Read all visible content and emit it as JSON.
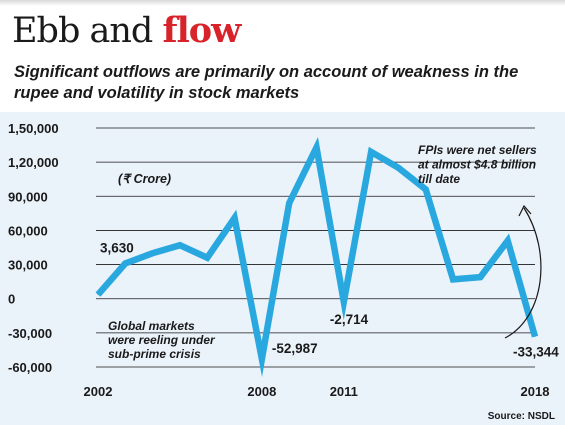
{
  "title": {
    "plain": "Ebb and ",
    "accent": "flow"
  },
  "subtitle": "Significant outflows are primarily on account of  weakness in the rupee and volatility in stock markets",
  "source": "Source: NSDL",
  "colors": {
    "line": "#29a8e0",
    "accent": "#d8232a",
    "panel": "#eaf2fa",
    "grid": "#1a1a1a",
    "text": "#1a1a1a"
  },
  "chart_data": {
    "type": "line",
    "unit_label": "(₹ Crore)",
    "x": [
      2002,
      2003,
      2004,
      2005,
      2006,
      2007,
      2008,
      2009,
      2010,
      2011,
      2012,
      2013,
      2014,
      2015,
      2016,
      2017,
      2018
    ],
    "series": [
      {
        "values": [
          3630,
          31000,
          40000,
          47000,
          36000,
          71000,
          -52987,
          84000,
          133000,
          -2714,
          129000,
          115000,
          96000,
          17000,
          19000,
          51000,
          -33344
        ]
      }
    ],
    "ylim": [
      -60000,
      150000
    ],
    "yticks": [
      -60000,
      -30000,
      0,
      30000,
      60000,
      90000,
      120000,
      150000
    ],
    "ytick_labels": [
      "-60,000",
      "-30,000",
      "0",
      "30,000",
      "60,000",
      "90,000",
      "1,20,000",
      "1,50,000"
    ],
    "xticks": [
      2002,
      2008,
      2011,
      2018
    ],
    "xtick_labels": [
      "2002",
      "2008",
      "2011",
      "2018"
    ],
    "grid": true,
    "point_labels": [
      {
        "x": 2002,
        "y": 3630,
        "text": "3,630"
      },
      {
        "x": 2008,
        "y": -52987,
        "text": "-52,987"
      },
      {
        "x": 2011,
        "y": -2714,
        "text": "-2,714"
      },
      {
        "x": 2018,
        "y": -33344,
        "text": "-33,344"
      }
    ],
    "annotations": [
      {
        "lines": [
          "Global markets",
          "were reeling under",
          "sub-prime crisis"
        ]
      },
      {
        "lines": [
          "FPIs were net sellers",
          "at almost $4.8 billion",
          "till date"
        ]
      }
    ]
  }
}
